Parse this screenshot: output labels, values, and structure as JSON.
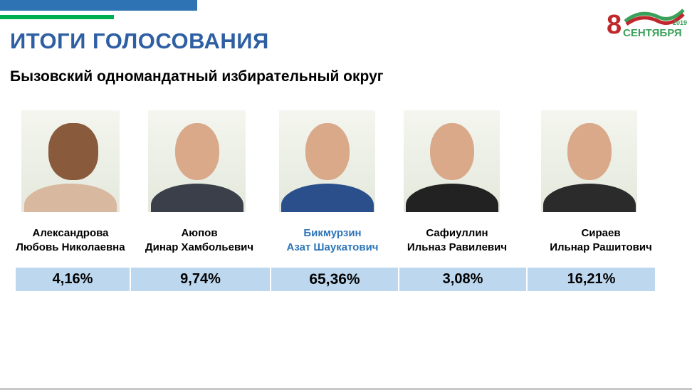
{
  "header": {
    "title": "ИТОГИ ГОЛОСОВАНИЯ",
    "subtitle": "Бызовский одномандатный избирательный округ"
  },
  "logo": {
    "day": "8",
    "month": "СЕНТЯБРЯ",
    "year": "2019",
    "colors": {
      "red": "#c0272d",
      "green": "#3aa15a"
    }
  },
  "accent_colors": {
    "blue": "#2e74b5",
    "green": "#00b050",
    "cell": "#bdd7ee",
    "winner": "#2e75b6"
  },
  "candidates": [
    {
      "surname": "Александрова",
      "given": "Любовь Николаевна",
      "result": "4,16%"
    },
    {
      "surname": "Аюпов",
      "given": "Динар Хамбольевич",
      "result": "9,74%"
    },
    {
      "surname": "Бикмурзин",
      "given": "Азат Шаукатович",
      "result": "65,36%",
      "winner": true
    },
    {
      "surname": "Сафиуллин",
      "given": "Ильназ Равилевич",
      "result": "3,08%"
    },
    {
      "surname": "Сираев",
      "given": "Ильнар Рашитович",
      "result": "16,21%"
    }
  ]
}
